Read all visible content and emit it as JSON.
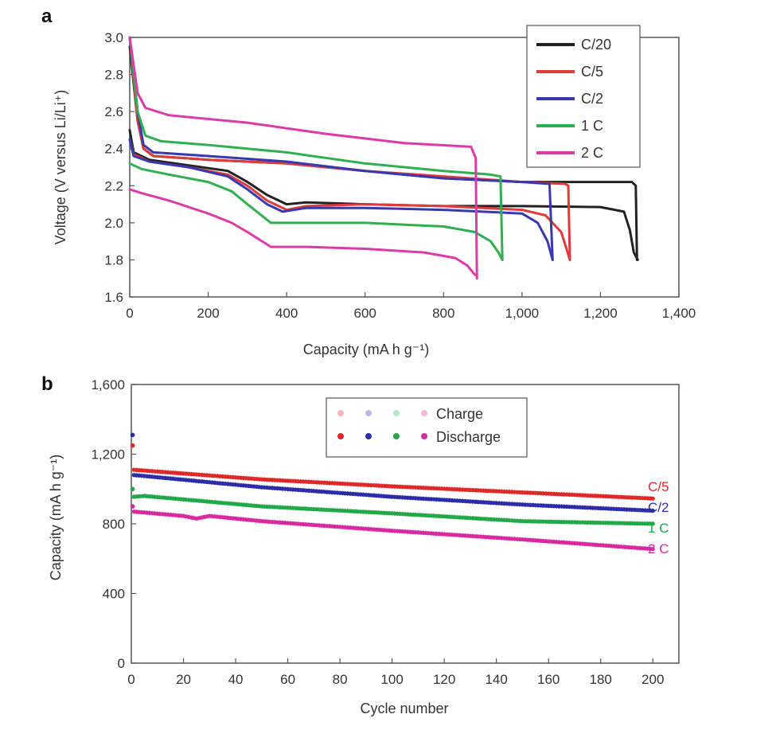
{
  "chart_data": [
    {
      "panel": "a",
      "type": "line",
      "xlabel": "Capacity (mA h g⁻¹)",
      "ylabel": "Voltage (V versus Li/Li⁺)",
      "xlim": [
        0,
        1400
      ],
      "ylim": [
        1.6,
        3.0
      ],
      "xticks": [
        0,
        200,
        400,
        600,
        800,
        1000,
        1200,
        1400
      ],
      "xtick_labels": [
        "0",
        "200",
        "400",
        "600",
        "800",
        "1,000",
        "1,200",
        "1,400"
      ],
      "yticks": [
        1.6,
        1.8,
        2.0,
        2.2,
        2.4,
        2.6,
        2.8,
        3.0
      ],
      "ytick_labels": [
        "1.6",
        "1.8",
        "2.0",
        "2.2",
        "2.4",
        "2.6",
        "2.8",
        "3.0"
      ],
      "legend_position": "top-right",
      "series": [
        {
          "name": "C/20",
          "color": "#222222",
          "discharge": [
            [
              0,
              2.5
            ],
            [
              10,
              2.38
            ],
            [
              50,
              2.34
            ],
            [
              150,
              2.31
            ],
            [
              250,
              2.28
            ],
            [
              300,
              2.22
            ],
            [
              350,
              2.15
            ],
            [
              400,
              2.1
            ],
            [
              450,
              2.11
            ],
            [
              600,
              2.1
            ],
            [
              800,
              2.09
            ],
            [
              1000,
              2.09
            ],
            [
              1200,
              2.085
            ],
            [
              1260,
              2.06
            ],
            [
              1275,
              1.96
            ],
            [
              1285,
              1.84
            ],
            [
              1295,
              1.8
            ]
          ],
          "charge": [
            [
              0,
              2.95
            ],
            [
              20,
              2.55
            ],
            [
              35,
              2.4
            ],
            [
              60,
              2.36
            ],
            [
              200,
              2.34
            ],
            [
              400,
              2.32
            ],
            [
              600,
              2.28
            ],
            [
              800,
              2.24
            ],
            [
              1000,
              2.22
            ],
            [
              1200,
              2.22
            ],
            [
              1280,
              2.22
            ],
            [
              1290,
              2.2
            ],
            [
              1293,
              1.8
            ]
          ]
        },
        {
          "name": "C/5",
          "color": "#e03a3a",
          "discharge": [
            [
              0,
              2.45
            ],
            [
              10,
              2.37
            ],
            [
              50,
              2.33
            ],
            [
              150,
              2.3
            ],
            [
              250,
              2.26
            ],
            [
              300,
              2.2
            ],
            [
              350,
              2.12
            ],
            [
              400,
              2.07
            ],
            [
              450,
              2.09
            ],
            [
              600,
              2.1
            ],
            [
              800,
              2.09
            ],
            [
              1000,
              2.07
            ],
            [
              1060,
              2.04
            ],
            [
              1100,
              1.95
            ],
            [
              1115,
              1.85
            ],
            [
              1122,
              1.8
            ]
          ],
          "charge": [
            [
              0,
              3.0
            ],
            [
              20,
              2.55
            ],
            [
              35,
              2.4
            ],
            [
              60,
              2.36
            ],
            [
              200,
              2.34
            ],
            [
              400,
              2.32
            ],
            [
              600,
              2.28
            ],
            [
              800,
              2.25
            ],
            [
              1000,
              2.22
            ],
            [
              1110,
              2.21
            ],
            [
              1118,
              2.2
            ],
            [
              1122,
              1.8
            ]
          ]
        },
        {
          "name": "C/2",
          "color": "#3838b0",
          "discharge": [
            [
              0,
              2.45
            ],
            [
              10,
              2.36
            ],
            [
              50,
              2.33
            ],
            [
              150,
              2.3
            ],
            [
              250,
              2.25
            ],
            [
              300,
              2.18
            ],
            [
              350,
              2.1
            ],
            [
              390,
              2.06
            ],
            [
              450,
              2.08
            ],
            [
              600,
              2.08
            ],
            [
              800,
              2.07
            ],
            [
              1000,
              2.05
            ],
            [
              1040,
              2.0
            ],
            [
              1065,
              1.9
            ],
            [
              1078,
              1.8
            ]
          ],
          "charge": [
            [
              0,
              3.0
            ],
            [
              20,
              2.6
            ],
            [
              35,
              2.42
            ],
            [
              60,
              2.38
            ],
            [
              200,
              2.36
            ],
            [
              400,
              2.33
            ],
            [
              600,
              2.28
            ],
            [
              800,
              2.24
            ],
            [
              1000,
              2.22
            ],
            [
              1070,
              2.21
            ],
            [
              1078,
              1.8
            ]
          ]
        },
        {
          "name": "1 C",
          "color": "#2fb050",
          "discharge": [
            [
              0,
              2.32
            ],
            [
              30,
              2.29
            ],
            [
              100,
              2.26
            ],
            [
              200,
              2.22
            ],
            [
              260,
              2.17
            ],
            [
              300,
              2.1
            ],
            [
              360,
              2.0
            ],
            [
              450,
              2.0
            ],
            [
              600,
              2.0
            ],
            [
              800,
              1.98
            ],
            [
              880,
              1.95
            ],
            [
              920,
              1.9
            ],
            [
              940,
              1.84
            ],
            [
              950,
              1.8
            ]
          ],
          "charge": [
            [
              0,
              3.0
            ],
            [
              20,
              2.6
            ],
            [
              40,
              2.47
            ],
            [
              80,
              2.44
            ],
            [
              200,
              2.42
            ],
            [
              400,
              2.38
            ],
            [
              600,
              2.32
            ],
            [
              800,
              2.28
            ],
            [
              920,
              2.26
            ],
            [
              945,
              2.25
            ],
            [
              950,
              1.8
            ]
          ]
        },
        {
          "name": "2 C",
          "color": "#dd3aa8",
          "discharge": [
            [
              0,
              2.18
            ],
            [
              30,
              2.16
            ],
            [
              100,
              2.12
            ],
            [
              200,
              2.05
            ],
            [
              260,
              2.0
            ],
            [
              300,
              1.95
            ],
            [
              360,
              1.87
            ],
            [
              450,
              1.87
            ],
            [
              600,
              1.86
            ],
            [
              750,
              1.84
            ],
            [
              830,
              1.81
            ],
            [
              860,
              1.77
            ],
            [
              880,
              1.72
            ]
          ],
          "charge": [
            [
              0,
              3.0
            ],
            [
              20,
              2.7
            ],
            [
              40,
              2.62
            ],
            [
              100,
              2.58
            ],
            [
              300,
              2.54
            ],
            [
              500,
              2.48
            ],
            [
              700,
              2.43
            ],
            [
              870,
              2.41
            ],
            [
              882,
              2.35
            ],
            [
              885,
              1.7
            ]
          ]
        }
      ]
    },
    {
      "panel": "b",
      "type": "scatter",
      "xlabel": "Cycle number",
      "ylabel": "Capacity (mA h g⁻¹)",
      "xlim": [
        0,
        210
      ],
      "ylim": [
        0,
        1600
      ],
      "xticks": [
        0,
        20,
        40,
        60,
        80,
        100,
        120,
        140,
        160,
        180,
        200
      ],
      "xtick_labels": [
        "0",
        "20",
        "40",
        "60",
        "80",
        "100",
        "120",
        "140",
        "160",
        "180",
        "200"
      ],
      "yticks": [
        0,
        400,
        800,
        1200,
        1600
      ],
      "ytick_labels": [
        "0",
        "400",
        "800",
        "1,200",
        "1,600"
      ],
      "legend_position": "top-center",
      "legend": [
        {
          "label": "Charge",
          "colors": [
            "#f5b8b8",
            "#b8b8e8",
            "#b8e6c4",
            "#f2b8dc"
          ]
        },
        {
          "label": "Discharge",
          "colors": [
            "#e02828",
            "#2c2ca8",
            "#22a848",
            "#d82aa0"
          ]
        }
      ],
      "series": [
        {
          "name": "C/5",
          "color": "#e02828",
          "charge_color": "#f5b8b8",
          "initial": 1250,
          "x": [
            1,
            50,
            100,
            150,
            200
          ],
          "values": [
            1110,
            1055,
            1015,
            980,
            945
          ]
        },
        {
          "name": "C/2",
          "color": "#2c2ca8",
          "charge_color": "#b8b8e8",
          "initial": 1310,
          "x": [
            1,
            50,
            100,
            150,
            200
          ],
          "values": [
            1080,
            1010,
            955,
            910,
            875
          ]
        },
        {
          "name": "1 C",
          "color": "#22a848",
          "charge_color": "#b8e6c4",
          "initial": 1000,
          "x": [
            1,
            5,
            50,
            100,
            150,
            200
          ],
          "values": [
            955,
            960,
            900,
            860,
            815,
            800
          ]
        },
        {
          "name": "2 C",
          "color": "#d82aa0",
          "charge_color": "#f2b8dc",
          "initial": 900,
          "x": [
            1,
            20,
            25,
            30,
            50,
            100,
            150,
            200
          ],
          "values": [
            870,
            845,
            830,
            845,
            815,
            760,
            710,
            655
          ]
        }
      ],
      "end_labels": [
        "C/5",
        "C/2",
        "1 C",
        "2 C"
      ]
    }
  ]
}
